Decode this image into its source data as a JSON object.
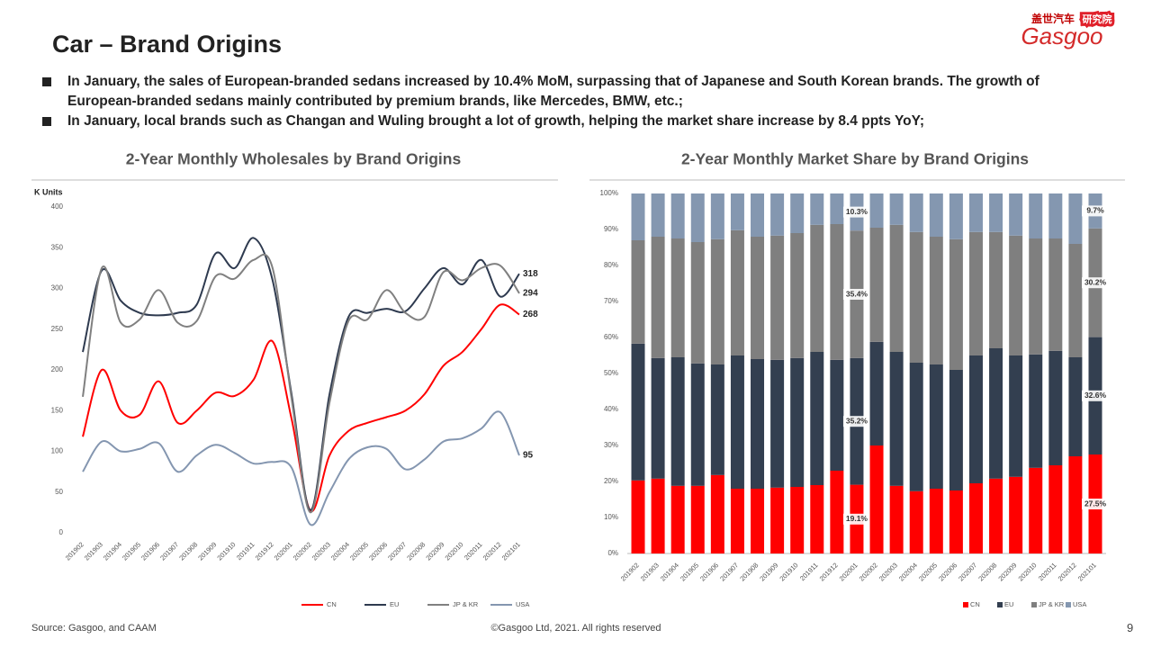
{
  "header": {
    "title": "Car – Brand Origins",
    "bullets": [
      "In January, the sales of European-branded sedans increased by 10.4% MoM, surpassing that of Japanese and South Korean brands. The growth of European-branded sedans mainly contributed by premium brands, like Mercedes, BMW, etc.;",
      "In January, local brands such as Changan and Wuling brought a lot of growth, helping the market share increase by 8.4 ppts YoY;"
    ]
  },
  "logo": {
    "brand_cn": "盖世汽车",
    "institute": "研究院",
    "brand": "Gasgoo"
  },
  "chart_data": [
    {
      "type": "line",
      "title": "2-Year Monthly Wholesales by Brand Origins",
      "y_label": "K Units",
      "categories": [
        "201902",
        "201903",
        "201904",
        "201905",
        "201906",
        "201907",
        "201908",
        "201909",
        "201910",
        "201911",
        "201912",
        "202001",
        "202002",
        "202003",
        "202004",
        "202005",
        "202006",
        "202007",
        "202008",
        "202009",
        "202010",
        "202011",
        "202012",
        "202101"
      ],
      "series": [
        {
          "name": "CN",
          "color": "#ff0000",
          "values": [
            118,
            200,
            150,
            145,
            186,
            135,
            150,
            172,
            168,
            188,
            235,
            140,
            27,
            95,
            125,
            135,
            142,
            150,
            170,
            205,
            222,
            250,
            280,
            268
          ]
        },
        {
          "name": "EU",
          "color": "#2e3a4f",
          "values": [
            222,
            322,
            285,
            270,
            267,
            270,
            280,
            343,
            325,
            362,
            310,
            170,
            28,
            170,
            265,
            270,
            275,
            272,
            300,
            325,
            305,
            335,
            290,
            318
          ]
        },
        {
          "name": "JP & KR",
          "color": "#808080",
          "values": [
            167,
            325,
            258,
            262,
            298,
            258,
            260,
            315,
            312,
            335,
            325,
            165,
            25,
            160,
            260,
            262,
            298,
            270,
            265,
            320,
            310,
            325,
            328,
            294
          ]
        },
        {
          "name": "USA",
          "color": "#8496b0",
          "values": [
            75,
            112,
            100,
            103,
            110,
            75,
            95,
            108,
            98,
            85,
            87,
            80,
            10,
            50,
            90,
            105,
            103,
            78,
            90,
            112,
            116,
            128,
            148,
            95
          ]
        }
      ],
      "ylim": [
        0,
        400
      ],
      "yticks": [
        0,
        50,
        100,
        150,
        200,
        250,
        300,
        350,
        400
      ],
      "grid": false,
      "legend": "bottom",
      "data_labels": "last"
    },
    {
      "type": "bar",
      "stacked": true,
      "title": "2-Year Monthly Market Share by Brand Origins",
      "categories": [
        "201902",
        "201903",
        "201904",
        "201905",
        "201906",
        "201907",
        "201908",
        "201909",
        "201910",
        "201911",
        "201912",
        "202001",
        "202002",
        "202003",
        "202004",
        "202005",
        "202006",
        "202007",
        "202008",
        "202009",
        "202010",
        "202011",
        "202012",
        "202101"
      ],
      "series": [
        {
          "name": "CN",
          "color": "#ff0000",
          "values": [
            20.3,
            20.8,
            18.8,
            18.8,
            21.8,
            18,
            18,
            18.3,
            18.5,
            19,
            23,
            19.1,
            30,
            18.8,
            17.3,
            18,
            17.5,
            19.5,
            20.8,
            21.3,
            23.8,
            24.5,
            27,
            27.5
          ],
          "value_labels": [
            null,
            null,
            null,
            null,
            null,
            null,
            null,
            null,
            null,
            null,
            null,
            "19.1%",
            null,
            null,
            null,
            null,
            null,
            null,
            null,
            null,
            null,
            null,
            null,
            "27.5%"
          ]
        },
        {
          "name": "EU",
          "color": "#333f50",
          "values": [
            38,
            33.5,
            35.7,
            34,
            30.7,
            37,
            36,
            35.5,
            35.8,
            37,
            30.8,
            35.2,
            28.8,
            37.2,
            35.7,
            34.5,
            33.5,
            35.5,
            36.2,
            33.7,
            31.5,
            31.8,
            27.5,
            32.6
          ],
          "value_labels": [
            null,
            null,
            null,
            null,
            null,
            null,
            null,
            null,
            null,
            null,
            null,
            "35.2%",
            null,
            null,
            null,
            null,
            null,
            null,
            null,
            null,
            null,
            null,
            null,
            "32.6%"
          ]
        },
        {
          "name": "JP & KR",
          "color": "#7f7f7f",
          "values": [
            28.7,
            33.7,
            33,
            33.7,
            34.8,
            34.8,
            34,
            34.5,
            34.7,
            35.3,
            37.7,
            35.4,
            31.7,
            35.3,
            36.3,
            35.5,
            36.3,
            34.3,
            32.3,
            33.3,
            32.2,
            31.2,
            31.5,
            30.2
          ],
          "value_labels": [
            null,
            null,
            null,
            null,
            null,
            null,
            null,
            null,
            null,
            null,
            null,
            "35.4%",
            null,
            null,
            null,
            null,
            null,
            null,
            null,
            null,
            null,
            null,
            null,
            "30.2%"
          ]
        },
        {
          "name": "USA",
          "color": "#8497b0",
          "values": [
            13,
            12,
            12.5,
            13.5,
            12.7,
            10.2,
            12,
            11.7,
            11,
            8.7,
            8.5,
            10.3,
            9.5,
            8.7,
            10.7,
            12,
            12.7,
            10.7,
            10.7,
            11.7,
            12.5,
            12.5,
            14,
            9.7
          ],
          "value_labels": [
            null,
            null,
            null,
            null,
            null,
            null,
            null,
            null,
            null,
            null,
            null,
            "10.3%",
            null,
            null,
            null,
            null,
            null,
            null,
            null,
            null,
            null,
            null,
            null,
            "9.7%"
          ]
        }
      ],
      "ylim": [
        0,
        100
      ],
      "yticks": [
        {
          "value": 0,
          "label": "0%"
        },
        {
          "value": 10,
          "label": "10%"
        },
        {
          "value": 20,
          "label": "20%"
        },
        {
          "value": 30,
          "label": "30%"
        },
        {
          "value": 40,
          "label": "40%"
        },
        {
          "value": 50,
          "label": "50%"
        },
        {
          "value": 60,
          "label": "60%"
        },
        {
          "value": 70,
          "label": "70%"
        },
        {
          "value": 80,
          "label": "80%"
        },
        {
          "value": 90,
          "label": "90%"
        },
        {
          "value": 100,
          "label": "100%"
        }
      ],
      "grid": false,
      "legend": "bottom"
    }
  ],
  "footer": {
    "source": "Source: Gasgoo, and CAAM",
    "copyright": "©Gasgoo Ltd, 2021. All rights reserved",
    "page": "9"
  }
}
